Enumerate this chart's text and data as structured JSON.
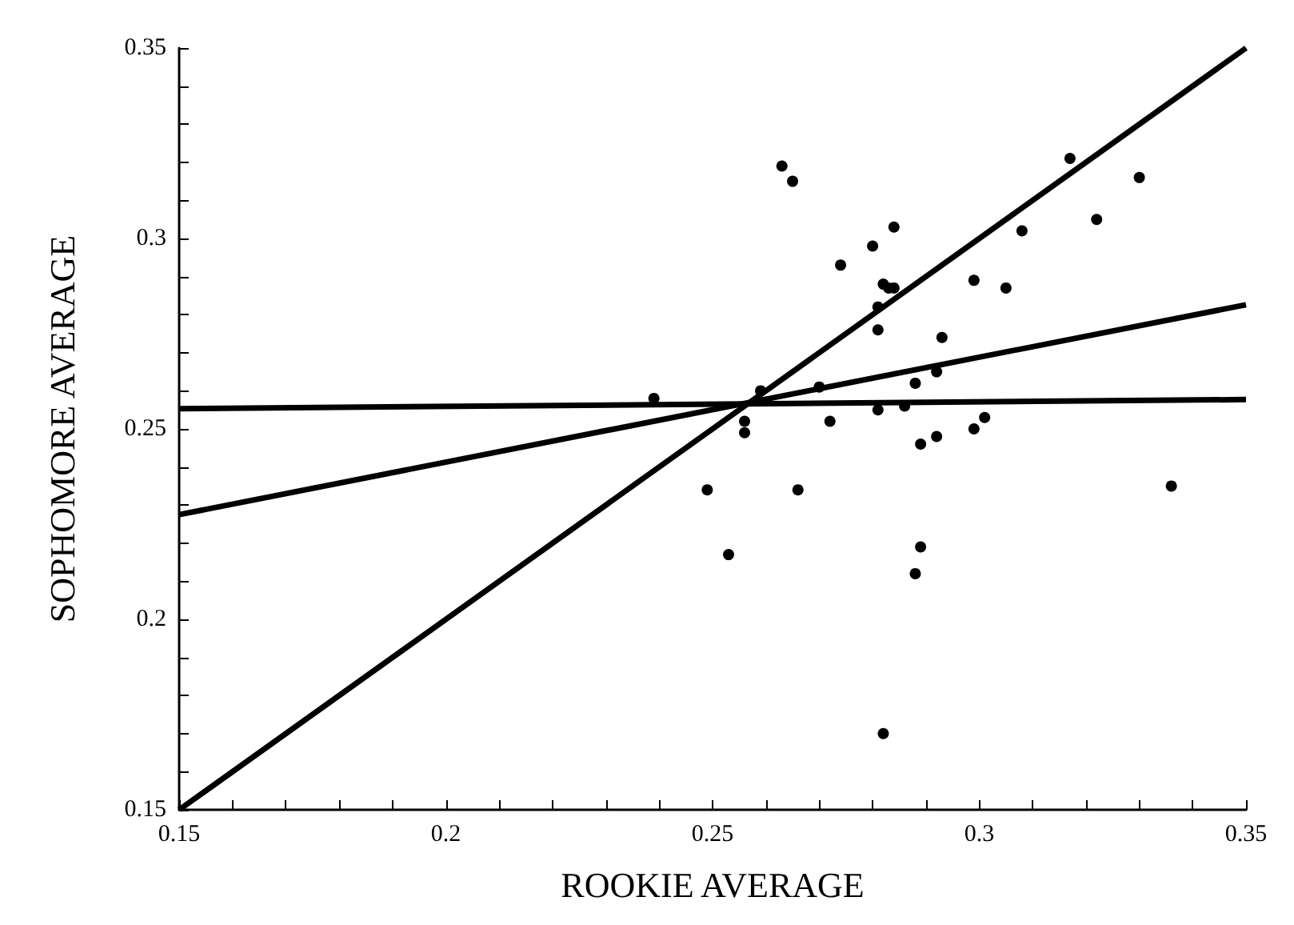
{
  "chart_data": {
    "type": "scatter",
    "xlabel": "ROOKIE AVERAGE",
    "ylabel": "SOPHOMORE AVERAGE",
    "xlim": [
      0.15,
      0.35
    ],
    "ylim": [
      0.15,
      0.35
    ],
    "xticks": [
      0.15,
      {
        "value": 0.16,
        "label": null
      },
      {
        "value": 0.17,
        "label": null
      },
      {
        "value": 0.18,
        "label": null
      },
      {
        "value": 0.19,
        "label": null
      },
      0.2,
      {
        "value": 0.21,
        "label": null
      },
      {
        "value": 0.22,
        "label": null
      },
      {
        "value": 0.23,
        "label": null
      },
      {
        "value": 0.24,
        "label": null
      },
      0.25,
      {
        "value": 0.26,
        "label": null
      },
      {
        "value": 0.27,
        "label": null
      },
      {
        "value": 0.28,
        "label": null
      },
      {
        "value": 0.29,
        "label": null
      },
      0.3,
      {
        "value": 0.31,
        "label": null
      },
      {
        "value": 0.32,
        "label": null
      },
      {
        "value": 0.33,
        "label": null
      },
      {
        "value": 0.34,
        "label": null
      },
      0.35
    ],
    "yticks": [
      0.15,
      {
        "value": 0.16,
        "label": null
      },
      {
        "value": 0.17,
        "label": null
      },
      {
        "value": 0.18,
        "label": null
      },
      {
        "value": 0.19,
        "label": null
      },
      0.2,
      {
        "value": 0.21,
        "label": null
      },
      {
        "value": 0.22,
        "label": null
      },
      {
        "value": 0.23,
        "label": null
      },
      {
        "value": 0.24,
        "label": null
      },
      0.25,
      {
        "value": 0.26,
        "label": null
      },
      {
        "value": 0.27,
        "label": null
      },
      {
        "value": 0.28,
        "label": null
      },
      {
        "value": 0.29,
        "label": null
      },
      0.3,
      {
        "value": 0.31,
        "label": null
      },
      {
        "value": 0.32,
        "label": null
      },
      {
        "value": 0.33,
        "label": null
      },
      {
        "value": 0.34,
        "label": null
      },
      0.35
    ],
    "grid": false,
    "marker": "circle",
    "line_style": "solid",
    "series": [
      {
        "color": "#000000",
        "x": [
          0.239,
          0.249,
          0.253,
          0.256,
          0.256,
          0.259,
          0.263,
          0.265,
          0.266,
          0.27,
          0.272,
          0.274,
          0.28,
          0.284,
          0.281,
          0.281,
          0.281,
          0.282,
          0.283,
          0.284,
          0.282,
          0.286,
          0.288,
          0.288,
          0.289,
          0.289,
          0.292,
          0.292,
          0.293,
          0.299,
          0.299,
          0.301,
          0.305,
          0.308,
          0.317,
          0.322,
          0.33,
          0.336
        ],
        "values": [
          0.258,
          0.234,
          0.217,
          0.252,
          0.249,
          0.26,
          0.319,
          0.315,
          0.234,
          0.261,
          0.252,
          0.293,
          0.298,
          0.303,
          0.282,
          0.276,
          0.255,
          0.288,
          0.287,
          0.287,
          0.17,
          0.256,
          0.262,
          0.212,
          0.219,
          0.246,
          0.265,
          0.248,
          0.274,
          0.289,
          0.25,
          0.253,
          0.287,
          0.302,
          0.321,
          0.305,
          0.316,
          0.235
        ]
      },
      {
        "type": "line",
        "marker": "none",
        "color": "#000000",
        "x": [
          0.15,
          0.35
        ],
        "values": [
          0.15,
          0.35
        ]
      },
      {
        "type": "line",
        "marker": "none",
        "color": "#000000",
        "x": [
          0.15,
          0.35
        ],
        "values": [
          0.2275,
          0.2826
        ]
      },
      {
        "type": "line",
        "marker": "none",
        "color": "#000000",
        "x": [
          0.15,
          0.35
        ],
        "values": [
          0.2553,
          0.2577
        ]
      }
    ]
  }
}
